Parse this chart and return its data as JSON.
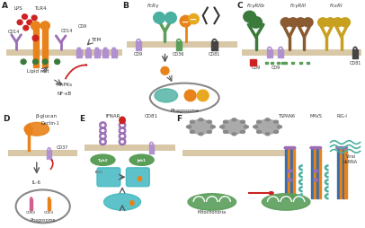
{
  "background": "#ffffff",
  "label_color": "#222222",
  "label_fs": 6.5,
  "text_fs": 4.0,
  "small_fs": 3.5,
  "membrane_color": "#c8c8c8",
  "colors": {
    "orange": "#e8821a",
    "purple": "#9b6db5",
    "green": "#5a9e5a",
    "dark_green": "#3a7a3a",
    "red": "#cc2222",
    "blue": "#3a6ea8",
    "teal": "#4ab0a0",
    "brown": "#8a5a30",
    "pink": "#d06090",
    "yellow_orange": "#e8a820",
    "gray": "#888888",
    "light_gray": "#cccccc",
    "dark_orange": "#c87020",
    "light_purple": "#b090d0",
    "black_gray": "#444444",
    "gold": "#c8a020",
    "cyan": "#40b8c0",
    "olive": "#7a7a30"
  }
}
